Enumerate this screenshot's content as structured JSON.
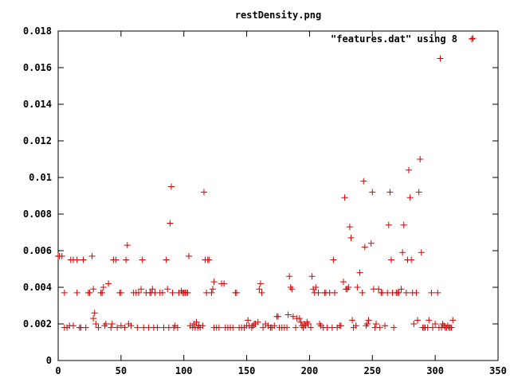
{
  "chart_data": {
    "type": "scatter",
    "title": "restDensity.png",
    "xlabel": "",
    "ylabel": "",
    "xlim": [
      0,
      350
    ],
    "ylim": [
      0,
      0.018
    ],
    "xticks": [
      0,
      50,
      100,
      150,
      200,
      250,
      300,
      350
    ],
    "xtick_labels": [
      "0",
      "50",
      "100",
      "150",
      "200",
      "250",
      "300",
      "350"
    ],
    "yticks": [
      0,
      0.002,
      0.004,
      0.006,
      0.008,
      0.01,
      0.012,
      0.014,
      0.016,
      0.018
    ],
    "ytick_labels": [
      "0",
      "0.002",
      "0.004",
      "0.006",
      "0.008",
      "0.01",
      "0.012",
      "0.014",
      "0.016",
      "0.018"
    ],
    "grid": false,
    "legend_position": "top-right",
    "marker": "plus",
    "series": [
      {
        "name": "\"features.dat\" using 8",
        "color": "#d40000",
        "points": [
          [
            0,
            0.0057
          ],
          [
            1,
            0.0057
          ],
          [
            3,
            0.0057
          ],
          [
            5,
            0.0037
          ],
          [
            5,
            0.0018
          ],
          [
            7,
            0.0018
          ],
          [
            9,
            0.0019
          ],
          [
            10,
            0.0055
          ],
          [
            12,
            0.0055
          ],
          [
            12,
            0.0019
          ],
          [
            15,
            0.0055
          ],
          [
            15,
            0.0037
          ],
          [
            17,
            0.0018
          ],
          [
            18,
            0.0018
          ],
          [
            20,
            0.0055
          ],
          [
            22,
            0.0018
          ],
          [
            24,
            0.0037
          ],
          [
            25,
            0.0037
          ],
          [
            27,
            0.0057
          ],
          [
            28,
            0.0039
          ],
          [
            28,
            0.0023
          ],
          [
            29,
            0.0026
          ],
          [
            30,
            0.002
          ],
          [
            32,
            0.0018
          ],
          [
            34,
            0.0037
          ],
          [
            35,
            0.0037
          ],
          [
            36,
            0.004
          ],
          [
            37,
            0.0019
          ],
          [
            38,
            0.002
          ],
          [
            40,
            0.0042
          ],
          [
            42,
            0.0018
          ],
          [
            43,
            0.002
          ],
          [
            44,
            0.0055
          ],
          [
            46,
            0.0055
          ],
          [
            47,
            0.0018
          ],
          [
            49,
            0.0037
          ],
          [
            50,
            0.0037
          ],
          [
            50,
            0.0019
          ],
          [
            53,
            0.0018
          ],
          [
            54,
            0.0055
          ],
          [
            55,
            0.0063
          ],
          [
            56,
            0.002
          ],
          [
            58,
            0.0019
          ],
          [
            60,
            0.0037
          ],
          [
            62,
            0.0037
          ],
          [
            63,
            0.0018
          ],
          [
            64,
            0.0037
          ],
          [
            66,
            0.0039
          ],
          [
            67,
            0.0055
          ],
          [
            68,
            0.0018
          ],
          [
            70,
            0.0037
          ],
          [
            72,
            0.0018
          ],
          [
            73,
            0.0037
          ],
          [
            74,
            0.0037
          ],
          [
            75,
            0.0039
          ],
          [
            76,
            0.0018
          ],
          [
            77,
            0.0037
          ],
          [
            79,
            0.0018
          ],
          [
            81,
            0.0037
          ],
          [
            83,
            0.0037
          ],
          [
            84,
            0.0018
          ],
          [
            86,
            0.0055
          ],
          [
            87,
            0.0039
          ],
          [
            88,
            0.0018
          ],
          [
            89,
            0.0075
          ],
          [
            90,
            0.0095
          ],
          [
            91,
            0.0037
          ],
          [
            92,
            0.0018
          ],
          [
            93,
            0.0019
          ],
          [
            95,
            0.0018
          ],
          [
            96,
            0.0037
          ],
          [
            98,
            0.0038
          ],
          [
            99,
            0.0037
          ],
          [
            100,
            0.0037
          ],
          [
            101,
            0.0037
          ],
          [
            102,
            0.0037
          ],
          [
            103,
            0.0037
          ],
          [
            104,
            0.0057
          ],
          [
            105,
            0.0019
          ],
          [
            107,
            0.0018
          ],
          [
            108,
            0.002
          ],
          [
            109,
            0.0018
          ],
          [
            110,
            0.0021
          ],
          [
            111,
            0.0018
          ],
          [
            112,
            0.0019
          ],
          [
            113,
            0.0018
          ],
          [
            115,
            0.0019
          ],
          [
            116,
            0.0092
          ],
          [
            117,
            0.0055
          ],
          [
            118,
            0.0037
          ],
          [
            119,
            0.0055
          ],
          [
            120,
            0.0055
          ],
          [
            122,
            0.0037
          ],
          [
            123,
            0.0039
          ],
          [
            124,
            0.0018
          ],
          [
            124,
            0.0043
          ],
          [
            126,
            0.0018
          ],
          [
            128,
            0.0018
          ],
          [
            130,
            0.0042
          ],
          [
            132,
            0.0042
          ],
          [
            133,
            0.0018
          ],
          [
            135,
            0.0018
          ],
          [
            137,
            0.0018
          ],
          [
            139,
            0.0018
          ],
          [
            141,
            0.0037
          ],
          [
            142,
            0.0037
          ],
          [
            144,
            0.0018
          ],
          [
            146,
            0.0018
          ],
          [
            148,
            0.0018
          ],
          [
            150,
            0.0019
          ],
          [
            151,
            0.0022
          ],
          [
            152,
            0.0019
          ],
          [
            154,
            0.0018
          ],
          [
            155,
            0.0019
          ],
          [
            156,
            0.002
          ],
          [
            157,
            0.002
          ],
          [
            159,
            0.0021
          ],
          [
            160,
            0.0039
          ],
          [
            161,
            0.0042
          ],
          [
            162,
            0.0037
          ],
          [
            163,
            0.0018
          ],
          [
            165,
            0.002
          ],
          [
            167,
            0.0019
          ],
          [
            169,
            0.0018
          ],
          [
            170,
            0.0018
          ],
          [
            172,
            0.0019
          ],
          [
            174,
            0.0024
          ],
          [
            175,
            0.0024
          ],
          [
            176,
            0.0018
          ],
          [
            178,
            0.0018
          ],
          [
            180,
            0.0018
          ],
          [
            182,
            0.0018
          ],
          [
            183,
            0.0025
          ],
          [
            184,
            0.0046
          ],
          [
            185,
            0.004
          ],
          [
            186,
            0.0039
          ],
          [
            187,
            0.0024
          ],
          [
            189,
            0.0018
          ],
          [
            190,
            0.0023
          ],
          [
            192,
            0.0023
          ],
          [
            193,
            0.0021
          ],
          [
            194,
            0.0019
          ],
          [
            195,
            0.0018
          ],
          [
            196,
            0.002
          ],
          [
            197,
            0.0019
          ],
          [
            198,
            0.0021
          ],
          [
            199,
            0.002
          ],
          [
            201,
            0.0018
          ],
          [
            202,
            0.0046
          ],
          [
            203,
            0.0039
          ],
          [
            204,
            0.0037
          ],
          [
            205,
            0.004
          ],
          [
            207,
            0.0037
          ],
          [
            208,
            0.002
          ],
          [
            209,
            0.0019
          ],
          [
            211,
            0.0018
          ],
          [
            212,
            0.0037
          ],
          [
            213,
            0.0037
          ],
          [
            214,
            0.0018
          ],
          [
            216,
            0.0037
          ],
          [
            218,
            0.0018
          ],
          [
            219,
            0.0055
          ],
          [
            220,
            0.0037
          ],
          [
            222,
            0.0018
          ],
          [
            224,
            0.0019
          ],
          [
            225,
            0.0019
          ],
          [
            227,
            0.0043
          ],
          [
            228,
            0.0089
          ],
          [
            229,
            0.0039
          ],
          [
            230,
            0.0039
          ],
          [
            231,
            0.004
          ],
          [
            232,
            0.0073
          ],
          [
            233,
            0.0067
          ],
          [
            234,
            0.0022
          ],
          [
            235,
            0.0018
          ],
          [
            237,
            0.0019
          ],
          [
            238,
            0.004
          ],
          [
            240,
            0.0048
          ],
          [
            242,
            0.0037
          ],
          [
            243,
            0.0098
          ],
          [
            244,
            0.0062
          ],
          [
            245,
            0.0019
          ],
          [
            246,
            0.002
          ],
          [
            247,
            0.0022
          ],
          [
            249,
            0.0064
          ],
          [
            250,
            0.0092
          ],
          [
            251,
            0.0039
          ],
          [
            252,
            0.0018
          ],
          [
            253,
            0.002
          ],
          [
            255,
            0.0039
          ],
          [
            256,
            0.0018
          ],
          [
            257,
            0.0037
          ],
          [
            258,
            0.0037
          ],
          [
            260,
            0.0019
          ],
          [
            262,
            0.0037
          ],
          [
            263,
            0.0074
          ],
          [
            264,
            0.0092
          ],
          [
            265,
            0.0055
          ],
          [
            266,
            0.0037
          ],
          [
            267,
            0.0018
          ],
          [
            269,
            0.0037
          ],
          [
            270,
            0.0037
          ],
          [
            271,
            0.0037
          ],
          [
            273,
            0.0039
          ],
          [
            274,
            0.0059
          ],
          [
            275,
            0.0074
          ],
          [
            277,
            0.0037
          ],
          [
            278,
            0.0055
          ],
          [
            279,
            0.0104
          ],
          [
            280,
            0.0089
          ],
          [
            281,
            0.0055
          ],
          [
            282,
            0.0037
          ],
          [
            283,
            0.002
          ],
          [
            285,
            0.0037
          ],
          [
            286,
            0.0022
          ],
          [
            287,
            0.0092
          ],
          [
            288,
            0.011
          ],
          [
            289,
            0.0059
          ],
          [
            290,
            0.0018
          ],
          [
            291,
            0.0018
          ],
          [
            292,
            0.0018
          ],
          [
            294,
            0.0018
          ],
          [
            295,
            0.0022
          ],
          [
            297,
            0.0037
          ],
          [
            298,
            0.0018
          ],
          [
            300,
            0.002
          ],
          [
            302,
            0.0037
          ],
          [
            303,
            0.0018
          ],
          [
            304,
            0.0165
          ],
          [
            305,
            0.0018
          ],
          [
            306,
            0.002
          ],
          [
            307,
            0.0019
          ],
          [
            308,
            0.0018
          ],
          [
            309,
            0.0018
          ],
          [
            310,
            0.0019
          ],
          [
            311,
            0.0018
          ],
          [
            312,
            0.0018
          ],
          [
            313,
            0.0018
          ],
          [
            314,
            0.0022
          ],
          [
            330,
            0.0176
          ]
        ]
      }
    ]
  }
}
